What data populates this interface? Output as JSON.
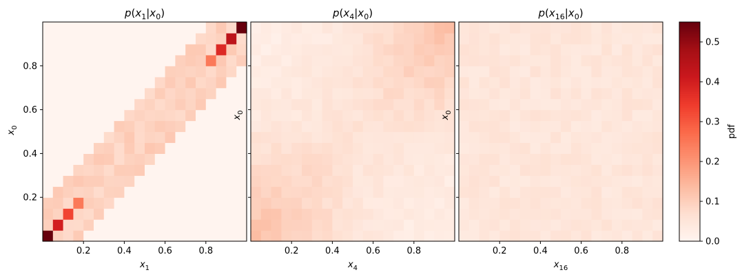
{
  "chart_data": [
    {
      "type": "heatmap",
      "title": "p(x1|x0)",
      "title_parts": {
        "base": "p(",
        "v1": "x",
        "s1": "1",
        "bar": "|",
        "v2": "x",
        "s2": "0",
        "end": ")"
      },
      "xlabel": {
        "v": "x",
        "s": "1"
      },
      "ylabel": {
        "v": "x",
        "s": "0"
      },
      "xlim": [
        0,
        1
      ],
      "ylim": [
        0,
        1
      ],
      "xticks": [
        "0.2",
        "0.4",
        "0.6",
        "0.8"
      ],
      "yticks": [
        "0.2",
        "0.4",
        "0.6",
        "0.8"
      ],
      "grid_size": 20,
      "pattern": "band",
      "half_width": 0.16,
      "band_value": 0.095,
      "diagonal_peaks": {
        "0": 0.55,
        "1": 0.4,
        "2": 0.33,
        "3": 0.25,
        "16": 0.25,
        "17": 0.38,
        "18": 0.44,
        "19": 0.55
      },
      "grid": false
    },
    {
      "type": "heatmap",
      "title": "p(x4|x0)",
      "title_parts": {
        "base": "p(",
        "v1": "x",
        "s1": "4",
        "bar": "|",
        "v2": "x",
        "s2": "0",
        "end": ")"
      },
      "xlabel": {
        "v": "x",
        "s": "4"
      },
      "ylabel": {
        "v": "x",
        "s": "0"
      },
      "xlim": [
        0,
        1
      ],
      "ylim": [
        0,
        1
      ],
      "xticks": [
        "0.2",
        "0.4",
        "0.6",
        "0.8"
      ],
      "yticks": [],
      "grid_size": 20,
      "pattern": "smooth",
      "base_value": 0.05,
      "corner_boost": 0.07,
      "grid": false
    },
    {
      "type": "heatmap",
      "title": "p(x16|x0)",
      "title_parts": {
        "base": "p(",
        "v1": "x",
        "s1": "16",
        "bar": "|",
        "v2": "x",
        "s2": "0",
        "end": ")"
      },
      "xlabel": {
        "v": "x",
        "s": "16"
      },
      "ylabel": {
        "v": "x",
        "s": "0"
      },
      "xlim": [
        0,
        1
      ],
      "ylim": [
        0,
        1
      ],
      "xticks": [
        "0.2",
        "0.4",
        "0.6",
        "0.8"
      ],
      "yticks": [],
      "grid_size": 20,
      "pattern": "uniform",
      "base_value": 0.05,
      "grid": false
    }
  ],
  "colorbar": {
    "label": "pdf",
    "colormap": "Reds",
    "range": [
      0.0,
      0.55
    ],
    "ticks": [
      "0.0",
      "0.1",
      "0.2",
      "0.3",
      "0.4",
      "0.5"
    ],
    "tick_values": [
      0.0,
      0.1,
      0.2,
      0.3,
      0.4,
      0.5
    ]
  }
}
